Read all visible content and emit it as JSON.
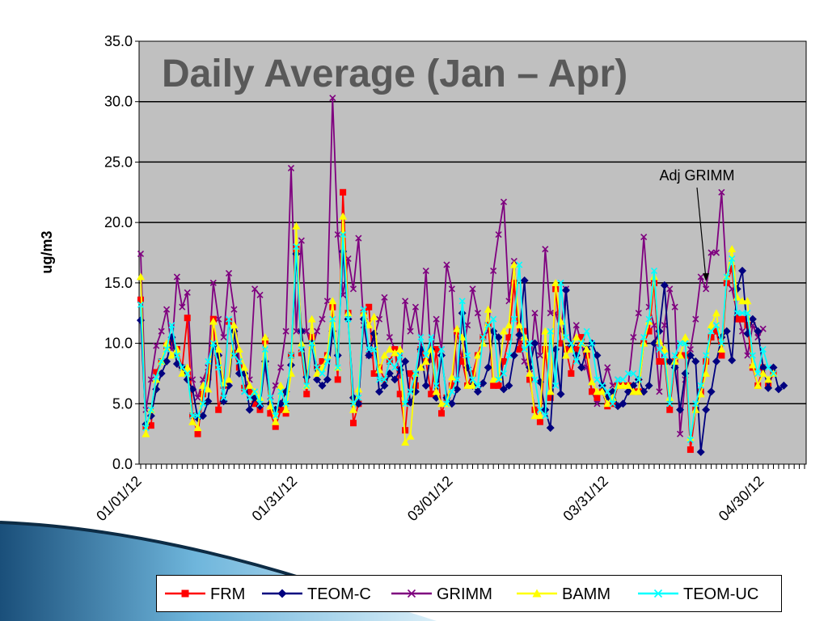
{
  "chart_data": {
    "type": "line",
    "title": "Daily Average (Jan – Apr)",
    "xlabel": "",
    "ylabel": "ug/m3",
    "ylim": [
      0,
      35
    ],
    "y_ticks": [
      "0.0",
      "5.0",
      "10.0",
      "15.0",
      "20.0",
      "25.0",
      "30.0",
      "35.0"
    ],
    "x_tick_labels": [
      "01/01/12",
      "01/31/12",
      "03/01/12",
      "03/31/12",
      "04/30/12"
    ],
    "x_tick_days": [
      0,
      30,
      60,
      90,
      120
    ],
    "days": 129,
    "grid": "horizontal",
    "legend_position": "bottom",
    "annotation": {
      "text": "Adj GRIMM",
      "target_series": "GRIMM",
      "target_day": 109,
      "target_value": 15.0
    },
    "series": [
      {
        "name": "FRM",
        "color": "#ff0000",
        "marker": "square",
        "values": [
          13.6,
          3.1,
          3.2,
          7.6,
          8.5,
          9.8,
          10.2,
          9.5,
          8.0,
          12.1,
          4.0,
          2.5,
          5.8,
          7.2,
          12.0,
          4.5,
          6.5,
          11.8,
          9.2,
          8.0,
          6.3,
          6.0,
          5.0,
          4.5,
          10.2,
          4.2,
          3.1,
          4.5,
          4.2,
          9.0,
          17.8,
          9.2,
          5.8,
          10.5,
          8.0,
          8.5,
          9.0,
          13.0,
          7.0,
          22.5,
          12.5,
          3.4,
          5.0,
          12.5,
          13.0,
          7.5,
          8.0,
          7.0,
          8.5,
          9.5,
          5.8,
          2.8,
          7.5,
          6.5,
          9.5,
          8.5,
          5.8,
          9.5,
          4.2,
          5.5,
          6.5,
          11.0,
          8.5,
          6.5,
          7.5,
          9.0,
          10.5,
          11.5,
          6.5,
          6.5,
          8.5,
          10.5,
          15.0,
          9.5,
          11.0,
          7.0,
          4.5,
          3.5,
          9.5,
          5.5,
          14.5,
          10.0,
          9.5,
          7.5,
          9.5,
          10.5,
          9.0,
          6.0,
          5.5,
          6.0,
          4.8,
          5.0,
          6.5,
          6.5,
          6.5,
          6.0,
          6.0,
          10.0,
          11.0,
          15.0,
          8.5,
          8.5,
          4.5,
          8.5,
          9.0,
          9.0,
          1.2,
          4.5,
          6.0,
          8.5,
          10.5,
          11.0,
          9.0,
          15.0,
          16.2,
          12.0,
          12.0,
          11.5,
          8.0,
          6.5,
          8.0,
          6.5,
          7.5
        ]
      },
      {
        "name": "TEOM-C",
        "color": "#00007f",
        "marker": "diamond",
        "values": [
          11.9,
          3.3,
          4.0,
          6.2,
          7.5,
          8.5,
          10.5,
          8.3,
          8.0,
          7.0,
          6.2,
          3.8,
          4.0,
          5.2,
          9.8,
          9.0,
          5.2,
          6.5,
          11.0,
          7.5,
          7.5,
          4.5,
          5.5,
          4.8,
          8.5,
          5.0,
          4.5,
          5.0,
          6.0,
          8.2,
          17.4,
          11.0,
          7.2,
          10.0,
          7.0,
          6.5,
          7.0,
          11.0,
          9.0,
          17.6,
          12.0,
          5.5,
          5.0,
          12.0,
          9.0,
          10.8,
          6.0,
          6.5,
          7.5,
          7.0,
          7.8,
          8.5,
          5.1,
          6.0,
          9.5,
          6.5,
          9.5,
          5.5,
          9.0,
          5.5,
          5.0,
          6.2,
          12.5,
          8.0,
          6.5,
          6.0,
          6.7,
          8.0,
          11.0,
          10.5,
          6.2,
          6.5,
          9.0,
          10.7,
          15.2,
          8.0,
          10.0,
          6.8,
          4.5,
          3.0,
          9.5,
          5.8,
          14.4,
          9.8,
          9.0,
          8.0,
          9.5,
          10.0,
          9.0,
          6.5,
          5.5,
          6.0,
          4.8,
          5.0,
          6.0,
          6.5,
          7.0,
          6.0,
          6.5,
          10.0,
          11.0,
          14.8,
          8.5,
          8.0,
          4.5,
          7.5,
          9.0,
          8.5,
          1.0,
          4.5,
          6.0,
          8.5,
          10.5,
          11.0,
          8.6,
          14.5,
          16.0,
          10.8,
          12.0,
          11.0,
          8.0,
          6.3,
          8.0,
          6.2,
          6.5
        ]
      },
      {
        "name": "GRIMM",
        "color": "#7f007f",
        "marker": "x",
        "values": [
          17.4,
          4.5,
          7.0,
          9.8,
          11.0,
          12.8,
          9.5,
          15.5,
          13.0,
          14.2,
          7.0,
          5.5,
          7.0,
          8.0,
          15.0,
          12.0,
          10.5,
          15.8,
          12.8,
          8.5,
          6.0,
          7.0,
          14.5,
          14.0,
          8.0,
          5.2,
          6.5,
          8.0,
          11.0,
          24.5,
          11.0,
          18.5,
          11.0,
          9.5,
          11.0,
          12.0,
          13.5,
          30.3,
          19.0,
          14.0,
          17.0,
          14.5,
          18.7,
          11.5,
          9.0,
          10.5,
          12.0,
          13.8,
          10.5,
          9.5,
          7.2,
          13.5,
          11.0,
          13.0,
          9.8,
          16.0,
          8.5,
          12.0,
          9.5,
          16.5,
          14.5,
          7.0,
          9.0,
          11.5,
          14.5,
          12.5,
          10.5,
          11.0,
          16.0,
          19.0,
          21.7,
          13.5,
          16.8,
          10.5,
          8.5,
          7.5,
          12.5,
          9.0,
          17.8,
          12.5,
          12.5,
          11.0,
          14.5,
          9.5,
          11.5,
          10.0,
          8.0,
          6.0,
          5.0,
          6.5,
          8.0,
          6.5,
          7.0,
          6.5,
          6.5,
          10.5,
          12.5,
          18.8,
          13.0,
          11.5,
          6.0,
          11.5,
          14.5,
          13.0,
          2.5,
          7.0,
          9.5,
          12.0,
          15.5,
          14.5,
          17.5,
          17.5,
          22.5,
          15.0,
          14.5,
          12.5,
          11.0,
          9.0,
          11.5,
          10.5,
          11.2
        ]
      },
      {
        "name": "BAMM",
        "color": "#ffff00",
        "marker": "triangle",
        "values": [
          15.5,
          2.5,
          4.5,
          7.0,
          8.5,
          10.0,
          9.0,
          9.5,
          7.5,
          8.0,
          3.5,
          3.0,
          6.5,
          6.2,
          11.8,
          9.5,
          6.7,
          7.0,
          11.5,
          9.5,
          8.0,
          6.5,
          6.0,
          5.5,
          10.5,
          4.8,
          3.5,
          6.5,
          4.5,
          7.5,
          19.7,
          10.0,
          6.5,
          12.0,
          7.5,
          8.0,
          9.0,
          13.5,
          8.0,
          20.5,
          12.5,
          4.5,
          6.2,
          12.5,
          11.5,
          12.2,
          7.8,
          9.0,
          9.5,
          9.2,
          9.5,
          1.8,
          2.3,
          7.5,
          8.0,
          8.5,
          9.5,
          6.0,
          5.0,
          5.0,
          7.2,
          11.2,
          10.5,
          6.5,
          6.5,
          9.0,
          10.0,
          12.8,
          7.0,
          7.2,
          11.0,
          11.5,
          16.5,
          11.5,
          10.5,
          7.5,
          4.0,
          4.0,
          11.0,
          6.0,
          15.0,
          11.8,
          9.0,
          9.5,
          10.5,
          10.0,
          9.5,
          6.8,
          6.0,
          6.0,
          5.0,
          5.5,
          6.5,
          6.5,
          6.5,
          6.0,
          6.0,
          10.0,
          11.8,
          15.5,
          10.2,
          9.5,
          5.5,
          8.5,
          9.0,
          10.5,
          2.2,
          4.5,
          5.8,
          7.5,
          11.5,
          12.5,
          9.5,
          15.5,
          17.8,
          13.8,
          13.5,
          13.5,
          8.2,
          6.5,
          7.5,
          7.0,
          7.5
        ]
      },
      {
        "name": "TEOM-UC",
        "color": "#00ffff",
        "marker": "x",
        "values": [
          13.2,
          3.0,
          4.5,
          7.2,
          8.5,
          9.5,
          11.5,
          9.0,
          8.0,
          7.5,
          4.0,
          4.0,
          5.0,
          8.5,
          10.0,
          8.0,
          5.5,
          12.0,
          9.0,
          8.5,
          6.0,
          5.5,
          6.0,
          5.0,
          9.5,
          5.5,
          4.0,
          6.0,
          5.0,
          9.0,
          18.0,
          9.5,
          6.5,
          10.0,
          8.0,
          7.5,
          8.5,
          12.0,
          8.0,
          19.0,
          12.0,
          5.0,
          5.5,
          12.8,
          9.5,
          9.5,
          7.0,
          7.0,
          8.5,
          8.0,
          9.0,
          5.0,
          6.0,
          7.5,
          10.5,
          9.0,
          10.5,
          6.5,
          9.5,
          5.0,
          6.0,
          7.0,
          13.5,
          9.0,
          7.0,
          6.5,
          10.5,
          11.5,
          12.0,
          7.0,
          7.5,
          9.0,
          12.0,
          16.5,
          9.5,
          10.0,
          7.0,
          4.5,
          4.0,
          11.0,
          6.5,
          15.0,
          10.5,
          10.0,
          8.5,
          10.0,
          11.0,
          10.0,
          7.0,
          6.5,
          6.0,
          5.0,
          7.0,
          7.0,
          7.5,
          7.5,
          7.0,
          10.5,
          12.0,
          16.0,
          9.5,
          9.0,
          5.0,
          9.0,
          10.0,
          10.0,
          2.0,
          5.0,
          6.5,
          9.0,
          11.0,
          11.5,
          10.0,
          15.5,
          17.0,
          12.5,
          12.5,
          12.5,
          9.0,
          7.5,
          9.5,
          8.0,
          7.5
        ]
      }
    ]
  }
}
